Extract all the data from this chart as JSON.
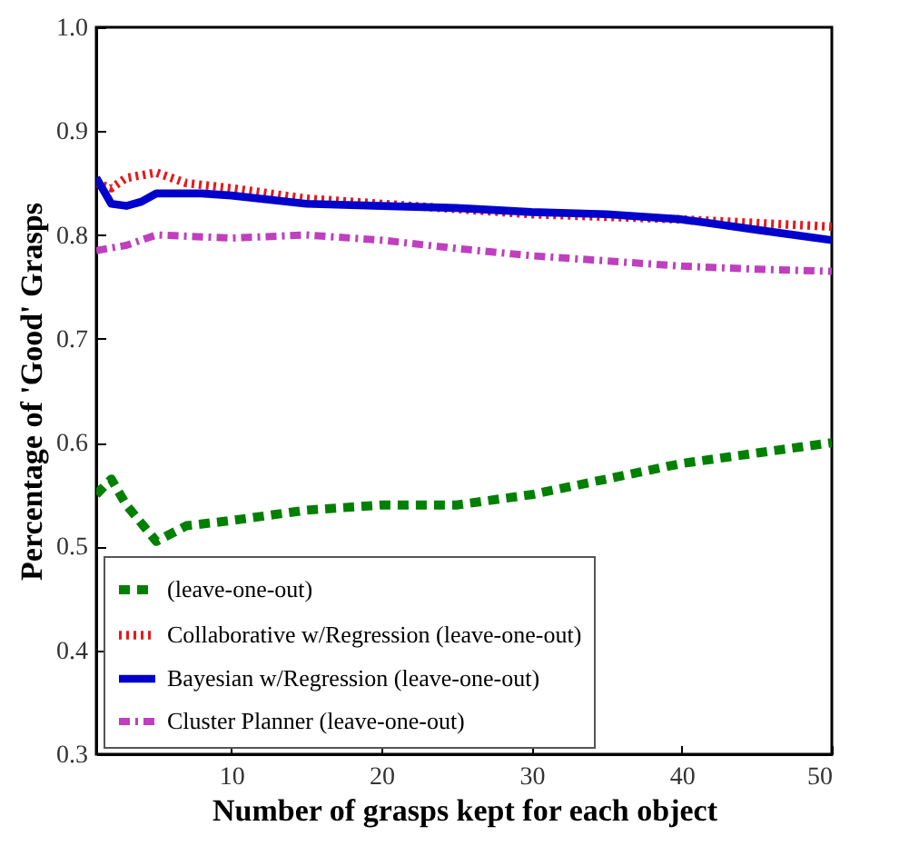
{
  "chart_data": {
    "type": "line",
    "xlabel": "Number of grasps kept for each object",
    "ylabel": "Percentage of 'Good' Grasps",
    "xlim": [
      1,
      50
    ],
    "ylim": [
      0.3,
      1.0
    ],
    "xticks": [
      10,
      20,
      30,
      40,
      50
    ],
    "yticks": [
      0.3,
      0.4,
      0.5,
      0.6,
      0.7,
      0.8,
      0.9,
      {
        "value": 1,
        "label": "1.0"
      }
    ],
    "legend": "bottom left",
    "grid": false,
    "series": [
      {
        "name": "(leave-one-out)",
        "color": "#008000",
        "line_style": "dashed",
        "x": [
          1,
          2,
          3,
          5,
          7,
          10,
          15,
          20,
          25,
          30,
          35,
          40,
          45,
          50
        ],
        "values": [
          0.55,
          0.565,
          0.54,
          0.505,
          0.52,
          0.525,
          0.535,
          0.54,
          0.54,
          0.55,
          0.565,
          0.58,
          0.59,
          0.6
        ]
      },
      {
        "name": "Collaborative w/Regression (leave-one-out)",
        "color": "#e41a1c",
        "line_style": "dotted",
        "x": [
          1,
          2,
          3,
          5,
          7,
          10,
          15,
          20,
          30,
          40,
          50
        ],
        "values": [
          0.85,
          0.845,
          0.855,
          0.86,
          0.85,
          0.845,
          0.835,
          0.83,
          0.82,
          0.815,
          0.808
        ]
      },
      {
        "name": "Bayesian w/Regression (leave-one-out)",
        "color": "#0000cc",
        "line_style": "solid",
        "x": [
          1,
          2,
          3,
          4,
          5,
          8,
          10,
          15,
          20,
          25,
          30,
          35,
          40,
          45,
          50
        ],
        "values": [
          0.855,
          0.83,
          0.828,
          0.832,
          0.84,
          0.84,
          0.838,
          0.83,
          0.828,
          0.826,
          0.822,
          0.82,
          0.815,
          0.805,
          0.795
        ]
      },
      {
        "name": "Cluster Planner (leave-one-out)",
        "color": "#bf3fbf",
        "line_style": "dashdot",
        "x": [
          1,
          3,
          5,
          10,
          15,
          20,
          25,
          30,
          35,
          40,
          45,
          50
        ],
        "values": [
          0.785,
          0.79,
          0.8,
          0.797,
          0.8,
          0.795,
          0.787,
          0.78,
          0.775,
          0.77,
          0.767,
          0.765
        ]
      }
    ]
  }
}
